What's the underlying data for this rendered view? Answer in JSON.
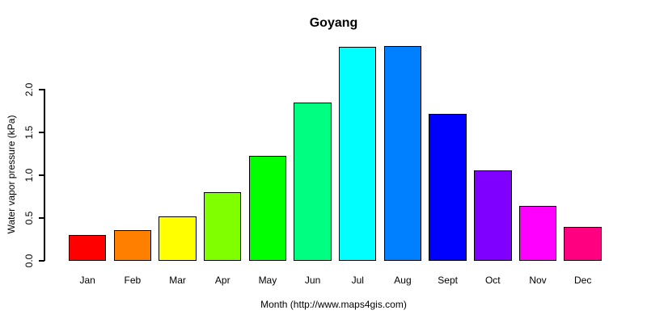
{
  "chart_data": {
    "type": "bar",
    "title": "Goyang",
    "xlabel": "Month (http://www.maps4gis.com)",
    "ylabel": "Water vapor pressure (kPa)",
    "categories": [
      "Jan",
      "Feb",
      "Mar",
      "Apr",
      "May",
      "Jun",
      "Jul",
      "Aug",
      "Sept",
      "Oct",
      "Nov",
      "Dec"
    ],
    "values": [
      0.3,
      0.36,
      0.52,
      0.8,
      1.23,
      1.85,
      2.5,
      2.51,
      1.72,
      1.06,
      0.64,
      0.4
    ],
    "bar_colors": [
      "#FF0000",
      "#FF8000",
      "#FFFF00",
      "#80FF00",
      "#00FF00",
      "#00FF80",
      "#00FFFF",
      "#0080FF",
      "#0000FF",
      "#8000FF",
      "#FF00FF",
      "#FF0080"
    ],
    "bar_border_color": "#000000",
    "yticks": [
      0.0,
      0.5,
      1.0,
      1.5,
      2.0
    ],
    "ytick_labels": [
      "0.0",
      "0.5",
      "1.0",
      "1.5",
      "2.0"
    ],
    "ylim": [
      0,
      2.55
    ],
    "axis_tick_range": [
      0.0,
      2.0
    ],
    "grid": false,
    "legend": false,
    "background": "#FFFFFF",
    "axis_color": "#000000"
  }
}
